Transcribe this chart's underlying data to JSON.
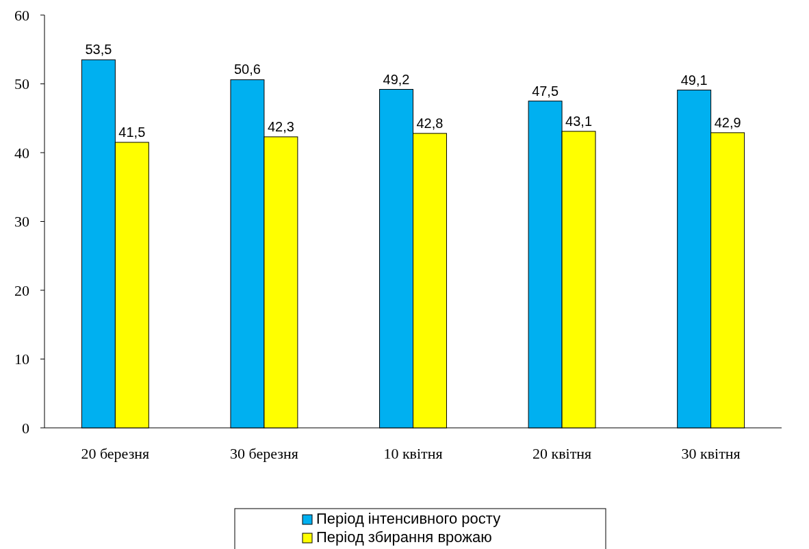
{
  "chart_data": {
    "type": "bar",
    "categories": [
      "20 березня",
      "30 березня",
      "10 квітня",
      "20 квітня",
      "30 квітня"
    ],
    "series": [
      {
        "name": "Період інтенсивного росту",
        "color": "#00b0f0",
        "values": [
          53.5,
          50.6,
          49.2,
          47.5,
          49.1
        ],
        "value_labels": [
          "53,5",
          "50,6",
          "49,2",
          "47,5",
          "49,1"
        ]
      },
      {
        "name": "Період збирання врожаю",
        "color": "#ffff00",
        "values": [
          41.5,
          42.3,
          42.8,
          43.1,
          42.9
        ],
        "value_labels": [
          "41,5",
          "42,3",
          "42,8",
          "43,1",
          "42,9"
        ]
      }
    ],
    "ylim": [
      0,
      60
    ],
    "yticks": [
      0,
      10,
      20,
      30,
      40,
      50,
      60
    ],
    "grid": false,
    "legend": "bottom"
  }
}
